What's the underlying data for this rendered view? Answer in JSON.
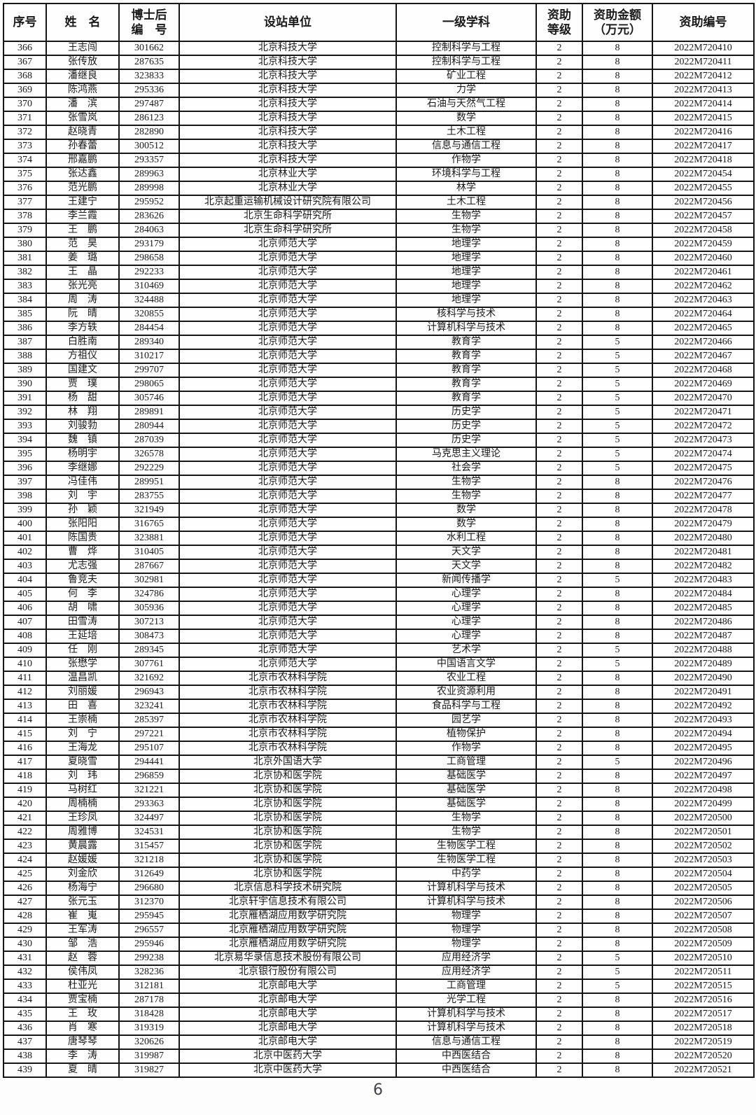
{
  "page": {
    "number": "6"
  },
  "table": {
    "headers": [
      {
        "lines": [
          "序号"
        ]
      },
      {
        "lines": [
          "姓　名"
        ]
      },
      {
        "lines": [
          "博士后",
          "编　号"
        ]
      },
      {
        "lines": [
          "设站单位"
        ]
      },
      {
        "lines": [
          "一级学科"
        ]
      },
      {
        "lines": [
          "资助",
          "等级"
        ]
      },
      {
        "lines": [
          "资助金额",
          "（万元）"
        ]
      },
      {
        "lines": [
          "资助编号"
        ]
      }
    ],
    "rows": [
      [
        "366",
        "王志闯",
        "301662",
        "北京科技大学",
        "控制科学与工程",
        "2",
        "8",
        "2022M720410"
      ],
      [
        "367",
        "张传放",
        "287635",
        "北京科技大学",
        "控制科学与工程",
        "2",
        "8",
        "2022M720411"
      ],
      [
        "368",
        "潘继良",
        "323833",
        "北京科技大学",
        "矿业工程",
        "2",
        "8",
        "2022M720412"
      ],
      [
        "369",
        "陈鸿燕",
        "295336",
        "北京科技大学",
        "力学",
        "2",
        "8",
        "2022M720413"
      ],
      [
        "370",
        "潘　滨",
        "297487",
        "北京科技大学",
        "石油与天然气工程",
        "2",
        "8",
        "2022M720414"
      ],
      [
        "371",
        "张雪岚",
        "286123",
        "北京科技大学",
        "数学",
        "2",
        "8",
        "2022M720415"
      ],
      [
        "372",
        "赵晓青",
        "282890",
        "北京科技大学",
        "土木工程",
        "2",
        "8",
        "2022M720416"
      ],
      [
        "373",
        "孙春蕾",
        "300512",
        "北京科技大学",
        "信息与通信工程",
        "2",
        "8",
        "2022M720417"
      ],
      [
        "374",
        "邢嘉鹏",
        "293357",
        "北京科技大学",
        "作物学",
        "2",
        "8",
        "2022M720418"
      ],
      [
        "375",
        "张达鑫",
        "289963",
        "北京林业大学",
        "环境科学与工程",
        "2",
        "8",
        "2022M720454"
      ],
      [
        "376",
        "范光鹏",
        "289998",
        "北京林业大学",
        "林学",
        "2",
        "8",
        "2022M720455"
      ],
      [
        "377",
        "王建宁",
        "295952",
        "北京起重运输机械设计研究院有限公司",
        "土木工程",
        "2",
        "8",
        "2022M720456"
      ],
      [
        "378",
        "李兰霞",
        "283626",
        "北京生命科学研究所",
        "生物学",
        "2",
        "8",
        "2022M720457"
      ],
      [
        "379",
        "王　鹏",
        "284063",
        "北京生命科学研究所",
        "生物学",
        "2",
        "8",
        "2022M720458"
      ],
      [
        "380",
        "范　昊",
        "293179",
        "北京师范大学",
        "地理学",
        "2",
        "8",
        "2022M720459"
      ],
      [
        "381",
        "姜　璐",
        "298658",
        "北京师范大学",
        "地理学",
        "2",
        "8",
        "2022M720460"
      ],
      [
        "382",
        "王　晶",
        "292233",
        "北京师范大学",
        "地理学",
        "2",
        "8",
        "2022M720461"
      ],
      [
        "383",
        "张光亮",
        "310469",
        "北京师范大学",
        "地理学",
        "2",
        "8",
        "2022M720462"
      ],
      [
        "384",
        "周　涛",
        "324488",
        "北京师范大学",
        "地理学",
        "2",
        "8",
        "2022M720463"
      ],
      [
        "385",
        "阮　晴",
        "320855",
        "北京师范大学",
        "核科学与技术",
        "2",
        "8",
        "2022M720464"
      ],
      [
        "386",
        "李方轶",
        "284454",
        "北京师范大学",
        "计算机科学与技术",
        "2",
        "8",
        "2022M720465"
      ],
      [
        "387",
        "白胜南",
        "289340",
        "北京师范大学",
        "教育学",
        "2",
        "5",
        "2022M720466"
      ],
      [
        "388",
        "方祖仪",
        "310217",
        "北京师范大学",
        "教育学",
        "2",
        "5",
        "2022M720467"
      ],
      [
        "389",
        "国建文",
        "299707",
        "北京师范大学",
        "教育学",
        "2",
        "5",
        "2022M720468"
      ],
      [
        "390",
        "贾　璞",
        "298065",
        "北京师范大学",
        "教育学",
        "2",
        "5",
        "2022M720469"
      ],
      [
        "391",
        "杨　甜",
        "305746",
        "北京师范大学",
        "教育学",
        "2",
        "5",
        "2022M720470"
      ],
      [
        "392",
        "林　翔",
        "289891",
        "北京师范大学",
        "历史学",
        "2",
        "5",
        "2022M720471"
      ],
      [
        "393",
        "刘骏勃",
        "280944",
        "北京师范大学",
        "历史学",
        "2",
        "5",
        "2022M720472"
      ],
      [
        "394",
        "魏　镇",
        "287039",
        "北京师范大学",
        "历史学",
        "2",
        "5",
        "2022M720473"
      ],
      [
        "395",
        "杨明宇",
        "326578",
        "北京师范大学",
        "马克思主义理论",
        "2",
        "5",
        "2022M720474"
      ],
      [
        "396",
        "李继娜",
        "292229",
        "北京师范大学",
        "社会学",
        "2",
        "5",
        "2022M720475"
      ],
      [
        "397",
        "冯佳伟",
        "289951",
        "北京师范大学",
        "生物学",
        "2",
        "8",
        "2022M720476"
      ],
      [
        "398",
        "刘　宇",
        "283755",
        "北京师范大学",
        "生物学",
        "2",
        "8",
        "2022M720477"
      ],
      [
        "399",
        "孙　颖",
        "321949",
        "北京师范大学",
        "数学",
        "2",
        "8",
        "2022M720478"
      ],
      [
        "400",
        "张阳阳",
        "316765",
        "北京师范大学",
        "数学",
        "2",
        "8",
        "2022M720479"
      ],
      [
        "401",
        "陈国贵",
        "323881",
        "北京师范大学",
        "水利工程",
        "2",
        "8",
        "2022M720480"
      ],
      [
        "402",
        "曹　烨",
        "310405",
        "北京师范大学",
        "天文学",
        "2",
        "8",
        "2022M720481"
      ],
      [
        "403",
        "尤志强",
        "287667",
        "北京师范大学",
        "天文学",
        "2",
        "8",
        "2022M720482"
      ],
      [
        "404",
        "鲁竞夫",
        "302981",
        "北京师范大学",
        "新闻传播学",
        "2",
        "5",
        "2022M720483"
      ],
      [
        "405",
        "何　李",
        "324786",
        "北京师范大学",
        "心理学",
        "2",
        "8",
        "2022M720484"
      ],
      [
        "406",
        "胡　啸",
        "305936",
        "北京师范大学",
        "心理学",
        "2",
        "8",
        "2022M720485"
      ],
      [
        "407",
        "田雪涛",
        "307213",
        "北京师范大学",
        "心理学",
        "2",
        "8",
        "2022M720486"
      ],
      [
        "408",
        "王延培",
        "308473",
        "北京师范大学",
        "心理学",
        "2",
        "8",
        "2022M720487"
      ],
      [
        "409",
        "任　刚",
        "289345",
        "北京师范大学",
        "艺术学",
        "2",
        "5",
        "2022M720488"
      ],
      [
        "410",
        "张懋学",
        "307761",
        "北京师范大学",
        "中国语言文学",
        "2",
        "5",
        "2022M720489"
      ],
      [
        "411",
        "温昌凯",
        "321692",
        "北京市农林科学院",
        "农业工程",
        "2",
        "8",
        "2022M720490"
      ],
      [
        "412",
        "刘丽媛",
        "296943",
        "北京市农林科学院",
        "农业资源利用",
        "2",
        "8",
        "2022M720491"
      ],
      [
        "413",
        "田　喜",
        "323241",
        "北京市农林科学院",
        "食品科学与工程",
        "2",
        "8",
        "2022M720492"
      ],
      [
        "414",
        "王崇楠",
        "285397",
        "北京市农林科学院",
        "园艺学",
        "2",
        "8",
        "2022M720493"
      ],
      [
        "415",
        "刘　宁",
        "297221",
        "北京市农林科学院",
        "植物保护",
        "2",
        "8",
        "2022M720494"
      ],
      [
        "416",
        "王海龙",
        "295107",
        "北京市农林科学院",
        "作物学",
        "2",
        "8",
        "2022M720495"
      ],
      [
        "417",
        "夏晓雪",
        "294441",
        "北京外国语大学",
        "工商管理",
        "2",
        "5",
        "2022M720496"
      ],
      [
        "418",
        "刘　玮",
        "296859",
        "北京协和医学院",
        "基础医学",
        "2",
        "8",
        "2022M720497"
      ],
      [
        "419",
        "马树红",
        "321221",
        "北京协和医学院",
        "基础医学",
        "2",
        "8",
        "2022M720498"
      ],
      [
        "420",
        "周楠楠",
        "293363",
        "北京协和医学院",
        "基础医学",
        "2",
        "8",
        "2022M720499"
      ],
      [
        "421",
        "王珍凤",
        "324497",
        "北京协和医学院",
        "生物学",
        "2",
        "8",
        "2022M720500"
      ],
      [
        "422",
        "周雅博",
        "324531",
        "北京协和医学院",
        "生物学",
        "2",
        "8",
        "2022M720501"
      ],
      [
        "423",
        "黄晨露",
        "315457",
        "北京协和医学院",
        "生物医学工程",
        "2",
        "8",
        "2022M720502"
      ],
      [
        "424",
        "赵媛媛",
        "321218",
        "北京协和医学院",
        "生物医学工程",
        "2",
        "8",
        "2022M720503"
      ],
      [
        "425",
        "刘金欣",
        "312649",
        "北京协和医学院",
        "中药学",
        "2",
        "8",
        "2022M720504"
      ],
      [
        "426",
        "杨海宁",
        "296680",
        "北京信息科学技术研究院",
        "计算机科学与技术",
        "2",
        "8",
        "2022M720505"
      ],
      [
        "427",
        "张元玉",
        "312370",
        "北京轩宇信息技术有限公司",
        "计算机科学与技术",
        "2",
        "8",
        "2022M720506"
      ],
      [
        "428",
        "崔　嵬",
        "295945",
        "北京雁栖湖应用数学研究院",
        "物理学",
        "2",
        "8",
        "2022M720507"
      ],
      [
        "429",
        "王军涛",
        "296557",
        "北京雁栖湖应用数学研究院",
        "物理学",
        "2",
        "8",
        "2022M720508"
      ],
      [
        "430",
        "邹　浩",
        "295946",
        "北京雁栖湖应用数学研究院",
        "物理学",
        "2",
        "8",
        "2022M720509"
      ],
      [
        "431",
        "赵　蓉",
        "299238",
        "北京易华录信息技术股份有限公司",
        "应用经济学",
        "2",
        "5",
        "2022M720510"
      ],
      [
        "432",
        "侯伟凤",
        "328236",
        "北京银行股份有限公司",
        "应用经济学",
        "2",
        "5",
        "2022M720511"
      ],
      [
        "433",
        "杜亚光",
        "312181",
        "北京邮电大学",
        "工商管理",
        "2",
        "5",
        "2022M720515"
      ],
      [
        "434",
        "贾宝楠",
        "287178",
        "北京邮电大学",
        "光学工程",
        "2",
        "8",
        "2022M720516"
      ],
      [
        "435",
        "王　玫",
        "318428",
        "北京邮电大学",
        "计算机科学与技术",
        "2",
        "8",
        "2022M720517"
      ],
      [
        "436",
        "肖　寒",
        "319319",
        "北京邮电大学",
        "计算机科学与技术",
        "2",
        "8",
        "2022M720518"
      ],
      [
        "437",
        "唐琴琴",
        "320626",
        "北京邮电大学",
        "信息与通信工程",
        "2",
        "8",
        "2022M720519"
      ],
      [
        "438",
        "李　涛",
        "319987",
        "北京中医药大学",
        "中西医结合",
        "2",
        "8",
        "2022M720520"
      ],
      [
        "439",
        "夏　晴",
        "319827",
        "北京中医药大学",
        "中西医结合",
        "2",
        "8",
        "2022M720521"
      ]
    ]
  }
}
